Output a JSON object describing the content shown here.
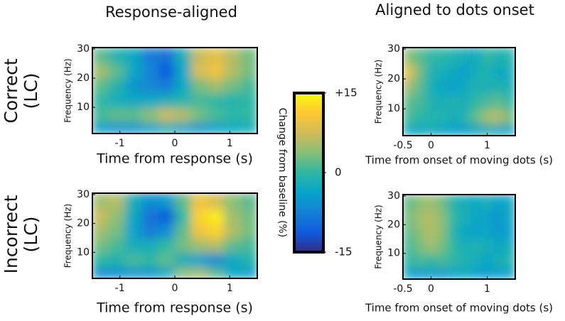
{
  "colorbar": {
    "label": "Change from baseline (%)",
    "lim": [
      -15,
      15
    ],
    "ticks": [
      {
        "value": 15,
        "label": "+15"
      },
      0,
      -15
    ],
    "colormap": "parula"
  },
  "chart_data": [
    {
      "type": "heatmap",
      "title": "Response-aligned",
      "row_label": [
        "Correct",
        "(LC)"
      ],
      "xlabel": "Time from response (s)",
      "ylabel": "Frequency (Hz)",
      "xbins": [
        -1.5,
        -1.2,
        -0.9,
        -0.6,
        -0.3,
        0,
        0.3,
        0.6,
        0.9,
        1.2,
        1.5
      ],
      "ybins": [
        1,
        5,
        10,
        15,
        20,
        25,
        30.5
      ],
      "values": [
        [
          -4,
          -5,
          -5,
          -4,
          -2,
          -3,
          -5,
          -4,
          -3,
          -2
        ],
        [
          1,
          2,
          2,
          4,
          7,
          6,
          3,
          1,
          0,
          0
        ],
        [
          0,
          -2,
          -3,
          -3,
          -2,
          -1,
          1,
          0,
          -1,
          0
        ],
        [
          2,
          -1,
          -5,
          -7,
          -8,
          -3,
          3,
          5,
          3,
          1
        ],
        [
          5,
          2,
          -3,
          -7,
          -11,
          -3,
          8,
          10,
          6,
          3
        ],
        [
          2,
          -1,
          -3,
          -8,
          -9,
          -2,
          7,
          9,
          6,
          3
        ]
      ],
      "xlim": [
        -1.5,
        1.5
      ],
      "ylim": [
        1,
        30.5
      ],
      "xticks": [
        -1,
        0,
        1
      ],
      "yticks": [
        10,
        20,
        30
      ]
    },
    {
      "type": "heatmap",
      "title": "Aligned to dots onset",
      "xlabel": "Time from onset of moving dots (s)",
      "ylabel": "Frequency (Hz)",
      "xbins": [
        -0.5,
        -0.3,
        -0.1,
        0.1,
        0.3,
        0.5,
        0.7,
        0.9,
        1.1,
        1.3,
        1.5
      ],
      "ybins": [
        1,
        5,
        10,
        15,
        20,
        25,
        30.5
      ],
      "values": [
        [
          -3,
          -3,
          -2,
          -3,
          -4,
          -4,
          -3,
          -2,
          -3,
          -3
        ],
        [
          1,
          0,
          -1,
          -1,
          -2,
          -1,
          2,
          5,
          6,
          3
        ],
        [
          2,
          1,
          -1,
          -2,
          -1,
          -2,
          0,
          1,
          2,
          0
        ],
        [
          5,
          2,
          -2,
          -3,
          -4,
          -3,
          -1,
          -2,
          -1,
          -2
        ],
        [
          9,
          3,
          -1,
          -2,
          -3,
          -4,
          -2,
          -1,
          -3,
          -2
        ],
        [
          4,
          2,
          0,
          0,
          -1,
          -2,
          -3,
          0,
          -1,
          -1
        ]
      ],
      "xlim": [
        -0.5,
        1.5
      ],
      "ylim": [
        1,
        30.5
      ],
      "xticks": [
        -0.5,
        0,
        1
      ],
      "yticks": [
        10,
        20,
        30
      ]
    },
    {
      "type": "heatmap",
      "row_label": [
        "Incorrect",
        "(LC)"
      ],
      "xlabel": "Time from response (s)",
      "ylabel": "Frequency (Hz)",
      "xbins": [
        -1.5,
        -1.2,
        -0.9,
        -0.6,
        -0.3,
        0,
        0.3,
        0.6,
        0.9,
        1.2,
        1.5
      ],
      "ybins": [
        1,
        5,
        10,
        15,
        20,
        25,
        30.5
      ],
      "values": [
        [
          -6,
          -6,
          -5,
          -5,
          -3,
          4,
          5,
          2,
          -3,
          -4
        ],
        [
          0,
          -1,
          1,
          0,
          2,
          -2,
          -4,
          -6,
          -3,
          -1
        ],
        [
          3,
          1,
          -2,
          -2,
          0,
          3,
          5,
          6,
          2,
          1
        ],
        [
          5,
          3,
          -4,
          -8,
          -6,
          2,
          10,
          12,
          6,
          3
        ],
        [
          7,
          4,
          -3,
          -9,
          -11,
          0,
          12,
          14,
          5,
          3
        ],
        [
          5,
          6,
          -2,
          -6,
          -5,
          2,
          10,
          8,
          4,
          2
        ]
      ],
      "xlim": [
        -1.5,
        1.5
      ],
      "ylim": [
        1,
        30.5
      ],
      "xticks": [
        -1,
        0,
        1
      ],
      "yticks": [
        10,
        20,
        30
      ]
    },
    {
      "type": "heatmap",
      "xlabel": "Time from onset of moving dots (s)",
      "ylabel": "Frequency (Hz)",
      "xbins": [
        -0.5,
        -0.3,
        -0.1,
        0.1,
        0.3,
        0.5,
        0.7,
        0.9,
        1.1,
        1.3,
        1.5
      ],
      "ybins": [
        1,
        5,
        10,
        15,
        20,
        25,
        30.5
      ],
      "values": [
        [
          -4,
          -5,
          -4,
          -5,
          -4,
          -3,
          -4,
          -5,
          -4,
          -4
        ],
        [
          0,
          1,
          0,
          1,
          0,
          -1,
          -2,
          -3,
          -2,
          -1
        ],
        [
          1,
          3,
          5,
          3,
          0,
          -2,
          -1,
          -2,
          -3,
          -2
        ],
        [
          2,
          4,
          6,
          4,
          -1,
          -3,
          -4,
          -3,
          -5,
          -4
        ],
        [
          3,
          5,
          6,
          4,
          0,
          -2,
          -3,
          -4,
          -5,
          -3
        ],
        [
          2,
          4,
          5,
          3,
          -1,
          -2,
          -3,
          -2,
          -4,
          -3
        ]
      ],
      "xlim": [
        -0.5,
        1.5
      ],
      "ylim": [
        1,
        30.5
      ],
      "xticks": [
        -0.5,
        0,
        1
      ],
      "yticks": [
        10,
        20,
        30
      ]
    }
  ]
}
